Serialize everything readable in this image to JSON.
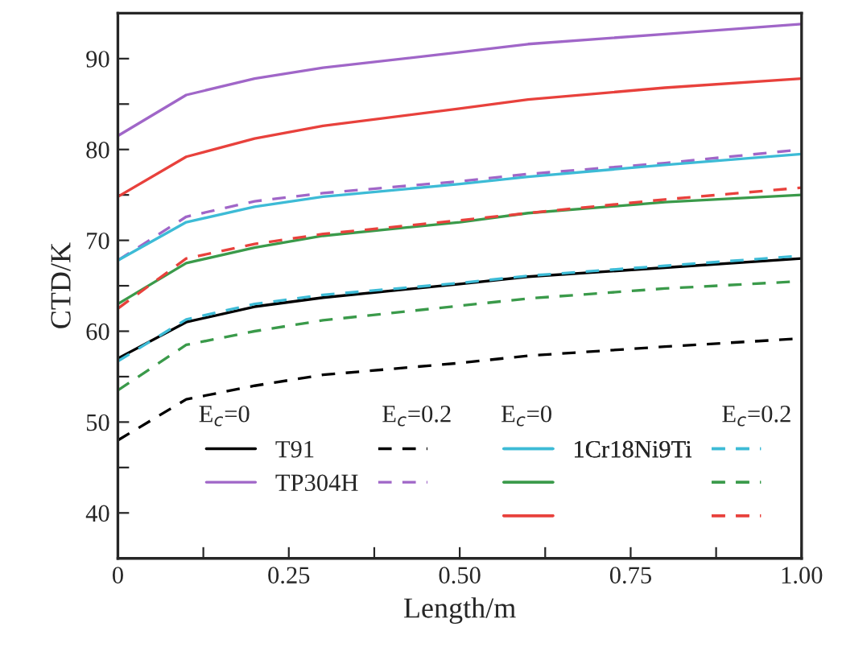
{
  "chart_data": {
    "type": "line",
    "xlabel": "Length/m",
    "ylabel": "CTD/K",
    "x": [
      0,
      0.1,
      0.2,
      0.3,
      0.5,
      0.6,
      0.8,
      1.0
    ],
    "xlim": [
      0,
      1.0
    ],
    "ylim": [
      35,
      95
    ],
    "xticks": [
      0,
      {
        "value": 0.125,
        "label": null
      },
      0.25,
      {
        "value": 0.375,
        "label": null
      },
      {
        "value": 0.5,
        "label": "0.50"
      },
      {
        "value": 0.625,
        "label": null
      },
      0.75,
      {
        "value": 0.875,
        "label": null
      },
      {
        "value": 1.0,
        "label": "1.00"
      }
    ],
    "yticks": [
      40,
      {
        "value": 45,
        "label": null
      },
      50,
      {
        "value": 55,
        "label": null
      },
      60,
      {
        "value": 65,
        "label": null
      },
      70,
      {
        "value": 75,
        "label": null
      },
      80,
      {
        "value": 85,
        "label": null
      },
      90,
      {
        "value": 95,
        "label": null
      }
    ],
    "grid": false,
    "legend": "bottom",
    "annotations": [
      "E$_{c}$=0",
      "E$_{c}$=0.2",
      "E$_{c}$=0",
      "E$_{c}$=0.2"
    ],
    "series": [
      {
        "name": "T91",
        "color": "#000000",
        "line_style": "solid",
        "values": [
          57.0,
          61.0,
          62.7,
          63.7,
          65.2,
          66.0,
          67.0,
          68.0
        ]
      },
      {
        "color": "#000000",
        "line_style": "dashed",
        "values": [
          48.0,
          52.5,
          54.0,
          55.2,
          56.5,
          57.3,
          58.3,
          59.2
        ]
      },
      {
        "name": "TP304H",
        "color": "#a066c8",
        "line_style": "solid",
        "values": [
          81.5,
          86.0,
          87.8,
          89.0,
          90.7,
          91.6,
          92.7,
          93.8
        ]
      },
      {
        "color": "#a066c8",
        "line_style": "dashed",
        "values": [
          67.8,
          72.6,
          74.3,
          75.2,
          76.5,
          77.3,
          78.5,
          80.0
        ]
      },
      {
        "name": "1Cr18Ni9Ti",
        "color": "#3dbbd6",
        "line_style": "solid",
        "values": [
          67.8,
          72.0,
          73.7,
          74.8,
          76.2,
          77.0,
          78.3,
          79.5
        ]
      },
      {
        "color": "#3dbbd6",
        "line_style": "dashed",
        "values": [
          56.7,
          61.3,
          63.0,
          64.0,
          65.3,
          66.1,
          67.2,
          68.3
        ]
      },
      {
        "color": "#3a9a4a",
        "line_style": "solid",
        "values": [
          63.0,
          67.5,
          69.2,
          70.5,
          72.0,
          73.0,
          74.2,
          75.0
        ]
      },
      {
        "color": "#3a9a4a",
        "line_style": "dashed",
        "values": [
          53.5,
          58.5,
          60.0,
          61.2,
          62.8,
          63.6,
          64.7,
          65.5
        ]
      },
      {
        "color": "#e8413c",
        "line_style": "solid",
        "values": [
          74.8,
          79.2,
          81.2,
          82.6,
          84.5,
          85.5,
          86.8,
          87.8
        ]
      },
      {
        "color": "#e8413c",
        "line_style": "dashed",
        "values": [
          62.5,
          68.0,
          69.6,
          70.7,
          72.2,
          73.0,
          74.5,
          75.8
        ]
      }
    ]
  }
}
